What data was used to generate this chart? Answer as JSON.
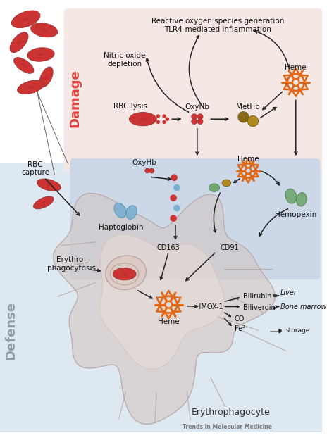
{
  "journal": "Trends in Molecular Medicine",
  "bg_top": "#f5e8e4",
  "bg_bottom": "#dde8f0",
  "bg_inner": "#ccd8e8",
  "damage_color": "#e04040",
  "defense_color": "#8090a0",
  "rbc_color": "#cc3333",
  "rbc_edge": "#993333",
  "heme_color": "#e06818",
  "hapto_color": "#7ab0d0",
  "hemo_color": "#70a870",
  "methb_dark": "#8b6914",
  "methb_light": "#b08820",
  "cell_body": "#ddd0cc",
  "cell_inner": "#ede0dc",
  "labels": {
    "damage": "Damage",
    "defense": "Defense",
    "reactive_oxygen": "Reactive oxygen species generation",
    "tlr4": "TLR4-mediated inflammation",
    "nitric_oxide": "Nitric oxide\ndepletion",
    "rbc_lysis": "RBC lysis",
    "oxyhb": "OxyHb",
    "methb": "MetHb",
    "heme_top": "Heme",
    "rbc_capture": "RBC\ncapture",
    "haptoglobin": "Haptoglobin",
    "cd163": "CD163",
    "cd91": "CD91",
    "heme_mid": "Heme",
    "hemopexin": "Hemopexin",
    "erythrophagocytosis": "Erythro-\nphagocytosis",
    "heme_bottom": "Heme",
    "hmox1": "HMOX-1",
    "bilirubin": "Bilirubin",
    "biliverdin": "Biliverdin",
    "co": "CO",
    "fe2": "Fe²⁺",
    "storage": "storage",
    "liver": "Liver",
    "bone_marrow": "Bone marrow",
    "erythrophagocyte": "Erythrophagocyte"
  }
}
